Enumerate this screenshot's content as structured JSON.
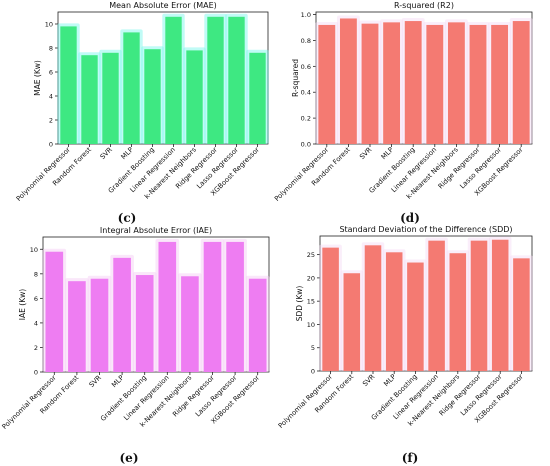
{
  "figure": {
    "panel_labels": [
      "(c)",
      "(d)",
      "(e)",
      "(f)"
    ]
  },
  "chart_data": [
    {
      "type": "bar",
      "title": "Mean Absolute Error (MAE)",
      "ylabel": "MAE (Kw)",
      "xlabel": "",
      "categories": [
        "Polynomial Regressor",
        "Random Forest",
        "SVR",
        "MLP",
        "Gradient Boosting",
        "Linear Regression",
        "k-Nearest Neighbors",
        "Ridge Regressor",
        "Lasso Regressor",
        "XGBoost Regressor"
      ],
      "values": [
        9.8,
        7.4,
        7.6,
        9.3,
        7.9,
        10.6,
        7.8,
        10.6,
        10.6,
        7.6
      ],
      "ylim": [
        0,
        11
      ],
      "yticks": [
        0,
        2,
        4,
        6,
        8,
        10
      ],
      "ytick_labels": [
        "0",
        "2",
        "4",
        "6",
        "8",
        "10"
      ],
      "bar_color": "#3ee882",
      "glow_color": "#74f6ec",
      "frame": true,
      "grid": false
    },
    {
      "type": "bar",
      "title": "R-squared (R2)",
      "ylabel": "R-squared",
      "xlabel": "",
      "categories": [
        "Polynomial Regressor",
        "Random Forest",
        "SVR",
        "MLP",
        "Gradient Boosting",
        "Linear Regression",
        "k-Nearest Neighbors",
        "Ridge Regressor",
        "Lasso Regressor",
        "XGBoost Regressor"
      ],
      "values": [
        0.92,
        0.97,
        0.93,
        0.94,
        0.95,
        0.92,
        0.94,
        0.92,
        0.92,
        0.95
      ],
      "ylim": [
        0,
        1.02
      ],
      "yticks": [
        0.0,
        0.2,
        0.4,
        0.6,
        0.8,
        1.0
      ],
      "ytick_labels": [
        "0.0",
        "0.2",
        "0.4",
        "0.6",
        "0.8",
        "1.0"
      ],
      "bar_color": "#f47a72",
      "glow_color": "#f5d9f5",
      "frame": true,
      "grid": false
    },
    {
      "type": "bar",
      "title": "Integral Absolute Error (IAE)",
      "ylabel": "IAE (Kw)",
      "xlabel": "",
      "categories": [
        "Polynomial Regressor",
        "Random Forest",
        "SVR",
        "MLP",
        "Gradient Boosting",
        "Linear Regression",
        "k-Nearest Neighbors",
        "Ridge Regressor",
        "Lasso Regressor",
        "XGBoost Regressor"
      ],
      "values": [
        9.8,
        7.4,
        7.6,
        9.3,
        7.9,
        10.6,
        7.8,
        10.6,
        10.6,
        7.6
      ],
      "ylim": [
        0,
        11
      ],
      "yticks": [
        0,
        2,
        4,
        6,
        8,
        10
      ],
      "ytick_labels": [
        "0",
        "2",
        "4",
        "6",
        "8",
        "10"
      ],
      "bar_color": "#ee7df2",
      "glow_color": "#f5c9f5",
      "frame": true,
      "grid": false
    },
    {
      "type": "bar",
      "title": "Standard Deviation of the Difference (SDD)",
      "ylabel": "SDD (Kw)",
      "xlabel": "",
      "categories": [
        "Polynomial Regressor",
        "Random Forest",
        "SVR",
        "MLP",
        "Gradient Boosting",
        "Linear Regression",
        "k-Nearest Neighbors",
        "Ridge Regressor",
        "Lasso Regressor",
        "XGBoost Regressor"
      ],
      "values": [
        26.5,
        21.0,
        27.0,
        25.5,
        23.3,
        28.0,
        25.3,
        28.0,
        28.2,
        24.2
      ],
      "ylim": [
        0,
        29
      ],
      "yticks": [
        0,
        5,
        10,
        15,
        20,
        25
      ],
      "ytick_labels": [
        "0",
        "5",
        "10",
        "15",
        "20",
        "25"
      ],
      "bar_color": "#f47a72",
      "glow_color": "#f5d9f5",
      "frame": true,
      "grid": false
    }
  ]
}
